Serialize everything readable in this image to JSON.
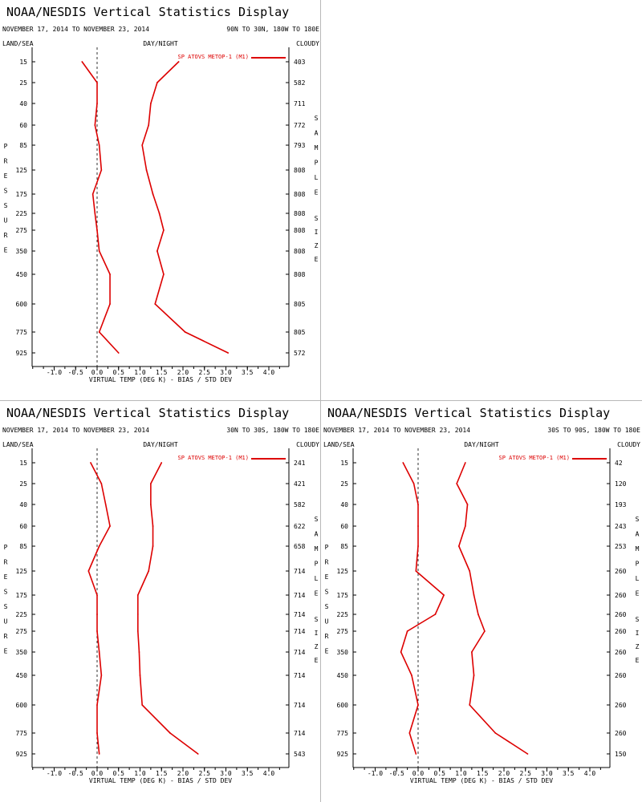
{
  "header": {
    "title": "NOAA/NESDIS Vertical Statistics Display",
    "daterange": "NOVEMBER 17, 2014 TO NOVEMBER 23, 2014",
    "landsea": "LAND/SEA",
    "daynight": "DAY/NIGHT",
    "cloudy": "CLOUDY",
    "left_axis": "PRESSURE",
    "right_axis": [
      "SAMPLE",
      "SIZE"
    ],
    "xlabel": "VIRTUAL TEMP (DEG K) - BIAS / STD DEV"
  },
  "colors": {
    "series": "#dd0000",
    "axis": "#000000",
    "zero_line": "#000000"
  },
  "chart_data": [
    {
      "type": "line",
      "region": "90N TO 30N, 180W TO 180E",
      "legend": "SP ATOVS METOP-1 (M1)",
      "pressure_levels": [
        15,
        25,
        40,
        60,
        85,
        125,
        175,
        225,
        275,
        350,
        450,
        600,
        775,
        925
      ],
      "sample_size": [
        "403",
        "582",
        "711",
        "772",
        "793",
        "808",
        "808",
        "808",
        "808",
        "808",
        "808",
        "805",
        "805",
        "572"
      ],
      "bias": [
        -0.35,
        0.0,
        0.0,
        -0.05,
        0.05,
        0.1,
        -0.1,
        -0.05,
        0.0,
        0.05,
        0.3,
        0.3,
        0.05,
        0.5
      ],
      "std_dev": [
        1.9,
        1.4,
        1.25,
        1.2,
        1.05,
        1.15,
        1.3,
        1.45,
        1.55,
        1.4,
        1.55,
        1.35,
        2.05,
        3.05
      ],
      "xticks": [
        "-1.0",
        "-0.5",
        "0.0",
        "0.5",
        "1.0",
        "1.5",
        "2.0",
        "2.5",
        "3.0",
        "3.5",
        "4.0"
      ],
      "xlim": [
        -1.5,
        4.5
      ]
    },
    {
      "type": "line",
      "region": "30N TO 30S, 180W TO 180E",
      "legend": "SP ATOVS METOP-1 (M1)",
      "pressure_levels": [
        15,
        25,
        40,
        60,
        85,
        125,
        175,
        225,
        275,
        350,
        450,
        600,
        775,
        925
      ],
      "sample_size": [
        "241",
        "421",
        "582",
        "622",
        "658",
        "714",
        "714",
        "714",
        "714",
        "714",
        "714",
        "714",
        "714",
        "543"
      ],
      "bias": [
        -0.15,
        0.1,
        0.2,
        0.3,
        0.05,
        -0.2,
        0.0,
        0.0,
        0.0,
        0.05,
        0.1,
        0.0,
        0.0,
        0.05
      ],
      "std_dev": [
        1.5,
        1.25,
        1.25,
        1.3,
        1.3,
        1.2,
        0.95,
        0.95,
        0.95,
        0.98,
        1.0,
        1.05,
        1.7,
        2.35
      ],
      "xticks": [
        "-1.0",
        "-0.5",
        "0.0",
        "0.5",
        "1.0",
        "1.5",
        "2.0",
        "2.5",
        "3.0",
        "3.5",
        "4.0"
      ],
      "xlim": [
        -1.5,
        4.5
      ]
    },
    {
      "type": "line",
      "region": "30S TO 90S, 180W TO 180E",
      "legend": "SP ATOVS METOP-1 (M1)",
      "pressure_levels": [
        15,
        25,
        40,
        60,
        85,
        125,
        175,
        225,
        275,
        350,
        450,
        600,
        775,
        925
      ],
      "sample_size": [
        "42",
        "120",
        "193",
        "243",
        "253",
        "260",
        "260",
        "260",
        "260",
        "260",
        "260",
        "260",
        "260",
        "150"
      ],
      "bias": [
        -0.35,
        -0.1,
        0.0,
        0.0,
        0.0,
        -0.05,
        0.6,
        0.4,
        -0.25,
        -0.4,
        -0.15,
        0.0,
        -0.2,
        -0.05
      ],
      "std_dev": [
        1.1,
        0.9,
        1.15,
        1.1,
        0.95,
        1.2,
        1.3,
        1.4,
        1.55,
        1.25,
        1.3,
        1.2,
        1.8,
        2.55
      ],
      "xticks": [
        "-1.0",
        "-0.5",
        "0.0",
        "0.5",
        "1.0",
        "1.5",
        "2.0",
        "2.5",
        "3.0",
        "3.5",
        "4.0"
      ],
      "xlim": [
        -1.5,
        4.5
      ]
    }
  ]
}
